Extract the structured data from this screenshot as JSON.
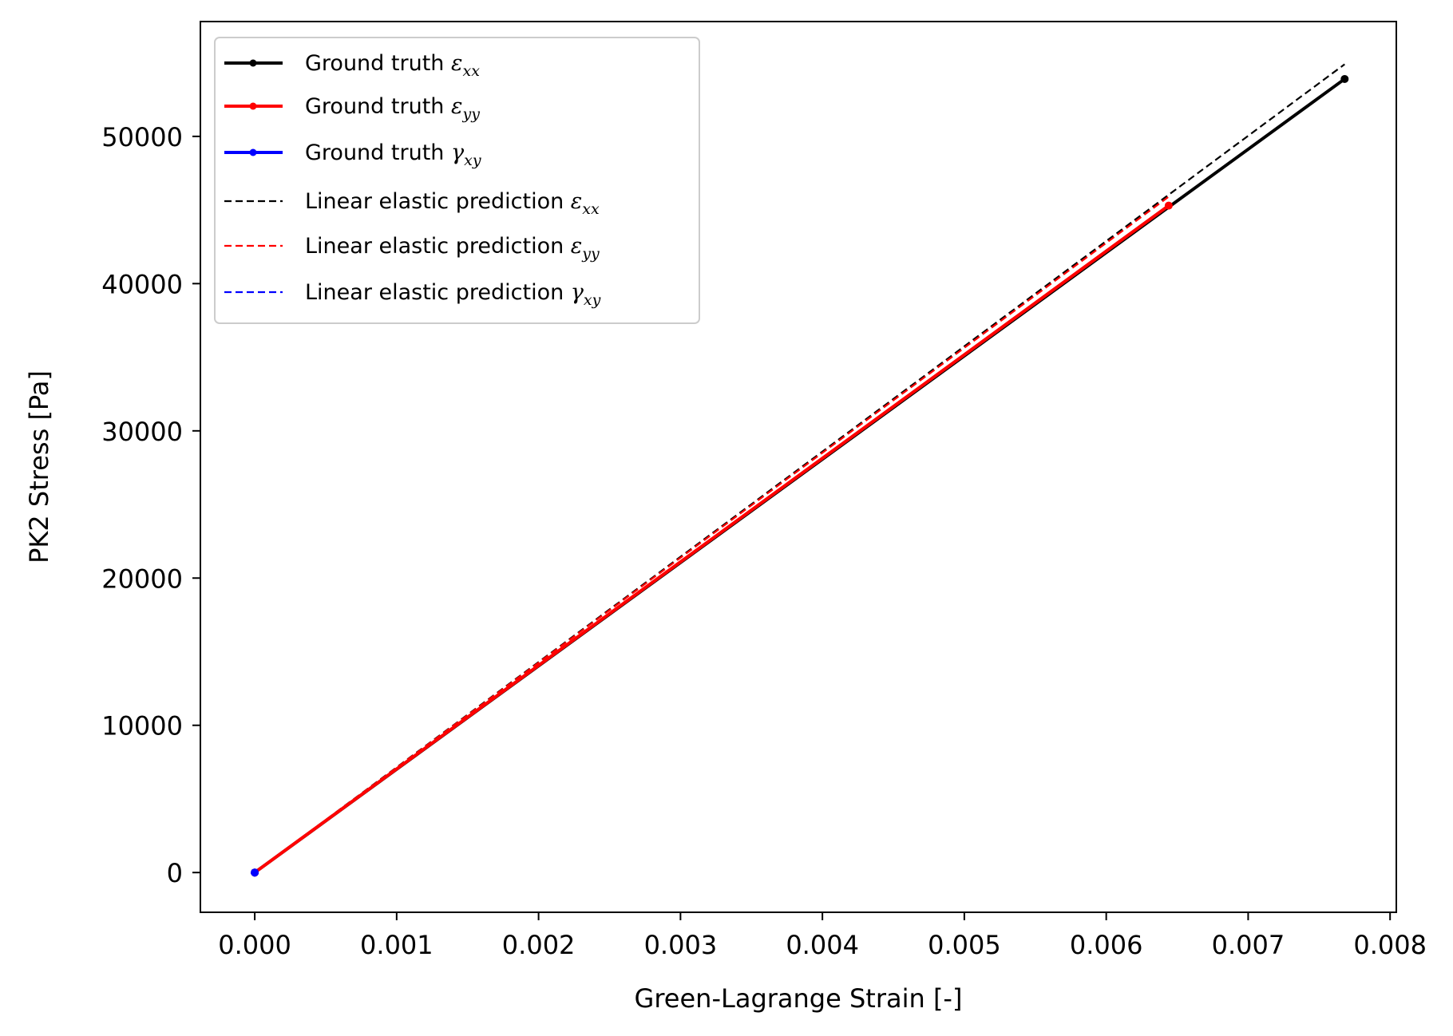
{
  "chart_data": {
    "type": "line",
    "title": "",
    "xlabel": "Green-Lagrange Strain [-]",
    "ylabel": "PK2 Stress [Pa]",
    "xlim": [
      -0.000383,
      0.008044
    ],
    "ylim": [
      -2700,
      57800
    ],
    "xticks": [
      0.0,
      0.001,
      0.002,
      0.003,
      0.004,
      0.005,
      0.006,
      0.007,
      0.008
    ],
    "xtick_labels": [
      "0.000",
      "0.001",
      "0.002",
      "0.003",
      "0.004",
      "0.005",
      "0.006",
      "0.007",
      "0.008"
    ],
    "yticks": [
      0,
      10000,
      20000,
      30000,
      40000,
      50000
    ],
    "ytick_labels": [
      "0",
      "10000",
      "20000",
      "30000",
      "40000",
      "50000"
    ],
    "legend_position": "upper-left",
    "series": [
      {
        "name": "Ground truth εxx",
        "legend_prefix": "Ground truth ",
        "symbol": "ε",
        "subscript": "xx",
        "color": "#000000",
        "style": "solid",
        "marker": "dot",
        "x": [
          0.0,
          0.00768
        ],
        "y": [
          0,
          53900
        ]
      },
      {
        "name": "Ground truth εyy",
        "legend_prefix": "Ground truth ",
        "symbol": "ε",
        "subscript": "yy",
        "color": "#ff0000",
        "style": "solid",
        "marker": "dot",
        "x": [
          0.0,
          0.00644
        ],
        "y": [
          0,
          45300
        ]
      },
      {
        "name": "Ground truth γxy",
        "legend_prefix": "Ground truth ",
        "symbol": "γ",
        "subscript": "xy",
        "color": "#0000ff",
        "style": "solid",
        "marker": "dot",
        "x": [
          0.0,
          0.0
        ],
        "y": [
          0,
          0
        ]
      },
      {
        "name": "Linear elastic prediction εxx",
        "legend_prefix": "Linear elastic prediction ",
        "symbol": "ε",
        "subscript": "xx",
        "color": "#000000",
        "style": "dashed",
        "marker": "none",
        "x": [
          0.0,
          0.00768
        ],
        "y": [
          0,
          54900
        ]
      },
      {
        "name": "Linear elastic prediction εyy",
        "legend_prefix": "Linear elastic prediction ",
        "symbol": "ε",
        "subscript": "yy",
        "color": "#ff0000",
        "style": "dashed",
        "marker": "none",
        "x": [
          0.0,
          0.00644
        ],
        "y": [
          0,
          45900
        ]
      },
      {
        "name": "Linear elastic prediction γxy",
        "legend_prefix": "Linear elastic prediction ",
        "symbol": "γ",
        "subscript": "xy",
        "color": "#0000ff",
        "style": "dashed",
        "marker": "none",
        "x": [
          0.0,
          0.0
        ],
        "y": [
          0,
          0
        ]
      }
    ]
  }
}
